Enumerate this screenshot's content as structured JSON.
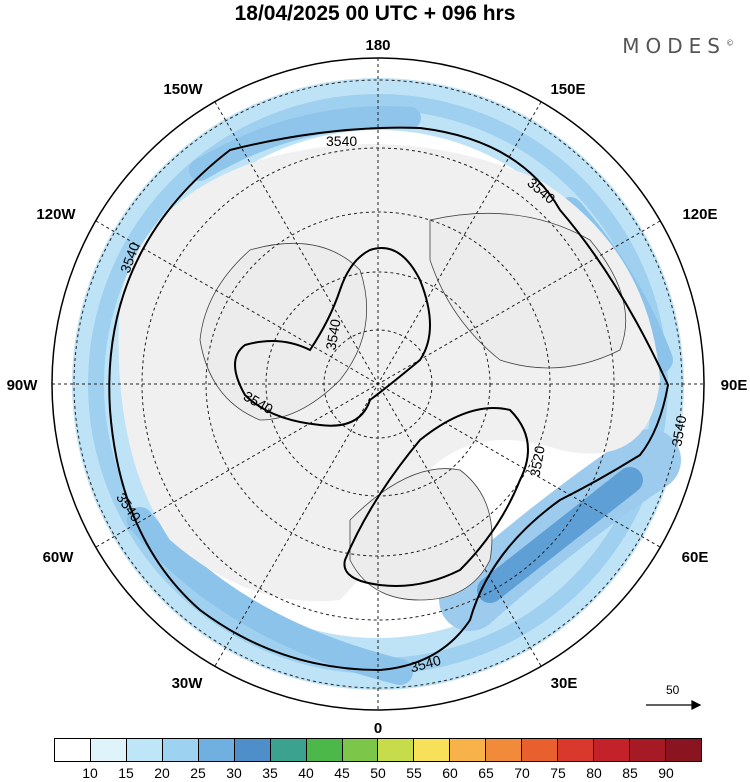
{
  "header": {
    "title": "18/04/2025  00 UTC  + 096 hrs",
    "brand": "MODES",
    "brand_mark": "©"
  },
  "map": {
    "projection": "north-polar-stereographic",
    "longitude_labels": {
      "top": "180",
      "bottom": "0",
      "left": "90W",
      "right": "90E",
      "upper_left": "150W",
      "upper_right": "150E",
      "mid_upper_left": "120W",
      "mid_upper_right": "120E",
      "mid_lower_left": "60W",
      "mid_lower_right": "60E",
      "lower_left": "30W",
      "lower_right": "30E"
    },
    "contour_labels": [
      "3540",
      "3540",
      "3540",
      "3540",
      "3540",
      "3540",
      "3520",
      "3540"
    ],
    "contour_levels": [
      3520,
      3540
    ],
    "vector_scale_label": "50"
  },
  "colorbar": {
    "colors": [
      "#ffffff",
      "#dff3fb",
      "#bfe6f7",
      "#9dd2f0",
      "#6fb0e0",
      "#4f8fc9",
      "#3aa28f",
      "#4db84a",
      "#7cc64a",
      "#c6dc4a",
      "#f7e05a",
      "#f7b24a",
      "#f28a3c",
      "#e8602e",
      "#d9382c",
      "#c4222a",
      "#a51a24",
      "#8a1420"
    ],
    "labels": [
      "10",
      "15",
      "20",
      "25",
      "30",
      "35",
      "40",
      "45",
      "50",
      "55",
      "60",
      "65",
      "70",
      "75",
      "80",
      "85",
      "90"
    ]
  }
}
